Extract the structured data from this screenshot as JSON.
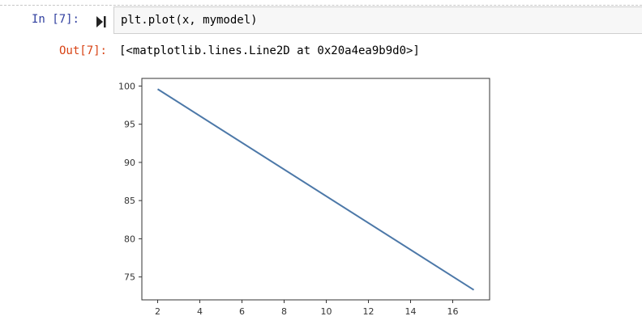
{
  "cell": {
    "in_prompt": "In [7]:",
    "code": "plt.plot(x, mymodel)",
    "out_prompt": "Out[7]:",
    "output": "[<matplotlib.lines.Line2D at 0x20a4ea9b9d0>]",
    "run_icon": "run-cell-icon"
  },
  "colors": {
    "in_prompt": "#303f9f",
    "out_prompt": "#d84315",
    "line": "#4c78a8"
  },
  "chart_data": {
    "type": "line",
    "series": [
      {
        "x": [
          2,
          17
        ],
        "y": [
          99.6,
          73.3
        ]
      }
    ],
    "xlim": [
      1.25,
      17.75
    ],
    "ylim": [
      72.0,
      101.0
    ],
    "xticks": [
      "2",
      "4",
      "6",
      "8",
      "10",
      "12",
      "14",
      "16"
    ],
    "yticks": [
      "75",
      "80",
      "85",
      "90",
      "95",
      "100"
    ],
    "grid": false
  }
}
